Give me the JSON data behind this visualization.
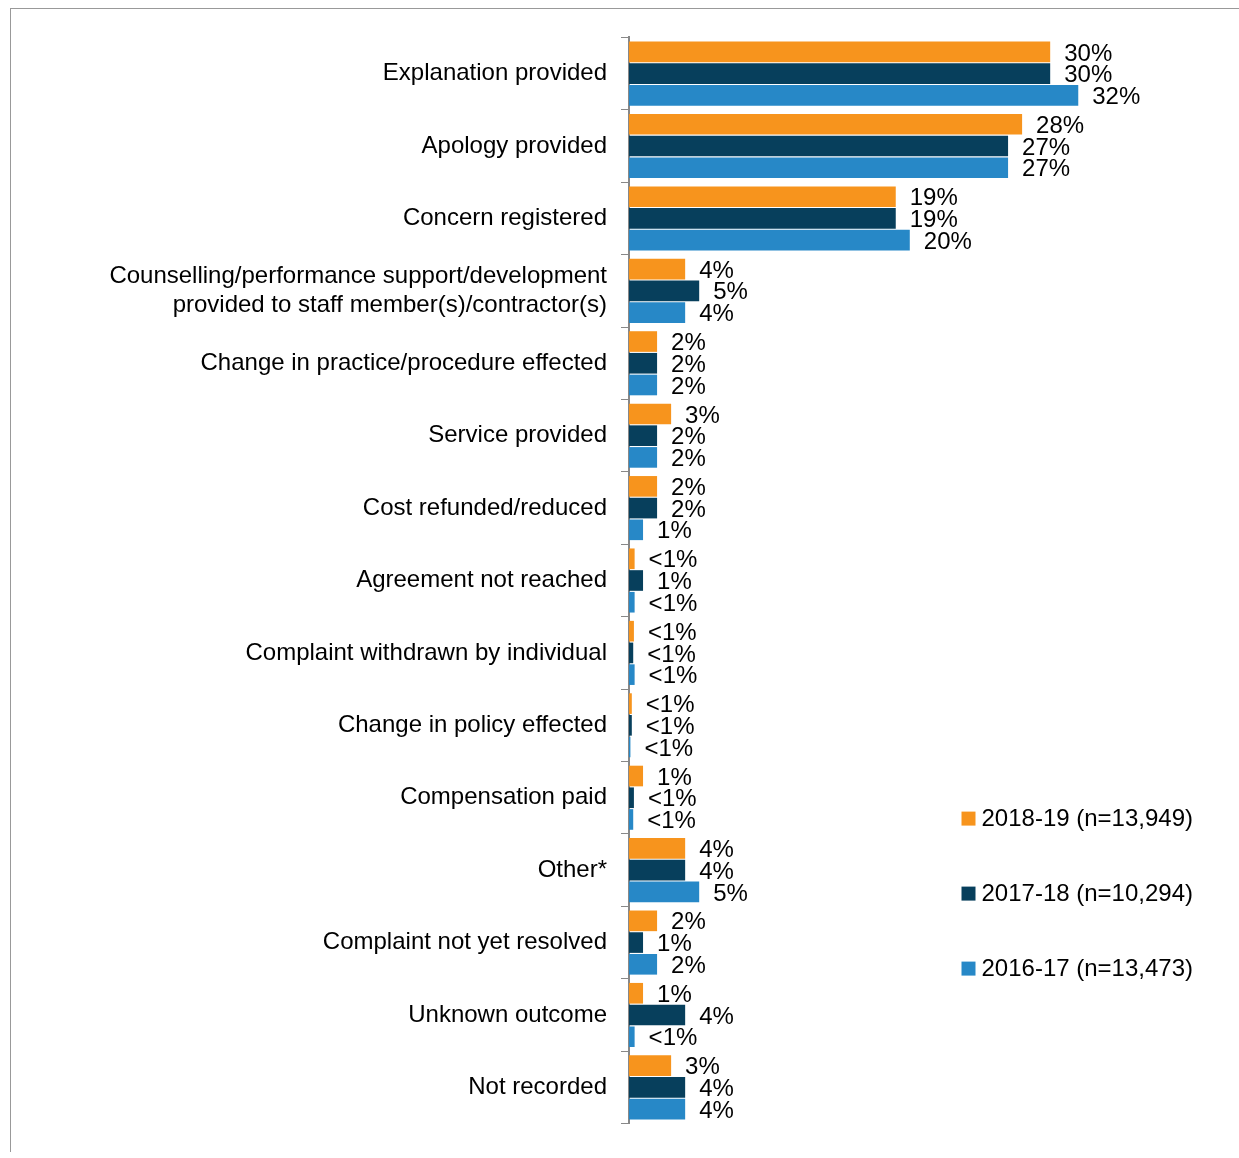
{
  "chart_data": {
    "type": "bar",
    "orientation": "horizontal",
    "legend": "bottom right",
    "grid": false,
    "categories": [
      "Explanation provided",
      "Apology provided",
      "Concern registered",
      "Counselling/performance support/development provided to staff member(s)/contractor(s)",
      "Change in practice/procedure effected",
      "Service provided",
      "Cost refunded/reduced",
      "Agreement not reached",
      "Complaint withdrawn by individual",
      "Change in policy effected",
      "Compensation paid",
      "Other*",
      "Complaint not yet resolved",
      "Unknown outcome",
      "Not recorded"
    ],
    "series": [
      {
        "name": "2018-19 (n=13,949)",
        "color": "#f7941d",
        "values": [
          30,
          28,
          19,
          4,
          2,
          3,
          2,
          0.4,
          0.35,
          0.2,
          1,
          4,
          2,
          1,
          3
        ],
        "value_labels": [
          "30%",
          "28%",
          "19%",
          "4%",
          "2%",
          "3%",
          "2%",
          "<1%",
          "<1%",
          "<1%",
          "1%",
          "4%",
          "2%",
          "1%",
          "3%"
        ]
      },
      {
        "name": "2017-18 (n=10,294)",
        "color": "#073f5c",
        "values": [
          30,
          27,
          19,
          5,
          2,
          2,
          2,
          1,
          0.3,
          0.2,
          0.35,
          4,
          1,
          4,
          4
        ],
        "value_labels": [
          "30%",
          "27%",
          "19%",
          "5%",
          "2%",
          "2%",
          "2%",
          "1%",
          "<1%",
          "<1%",
          "<1%",
          "4%",
          "1%",
          "4%",
          "4%"
        ]
      },
      {
        "name": "2016-17 (n=13,473)",
        "color": "#2788c7",
        "values": [
          32,
          27,
          20,
          4,
          2,
          2,
          1,
          0.4,
          0.4,
          0.1,
          0.3,
          5,
          2,
          0.4,
          4
        ],
        "value_labels": [
          "32%",
          "27%",
          "20%",
          "4%",
          "2%",
          "2%",
          "1%",
          "<1%",
          "<1%",
          "<1%",
          "<1%",
          "5%",
          "2%",
          "<1%",
          "4%"
        ]
      }
    ]
  }
}
